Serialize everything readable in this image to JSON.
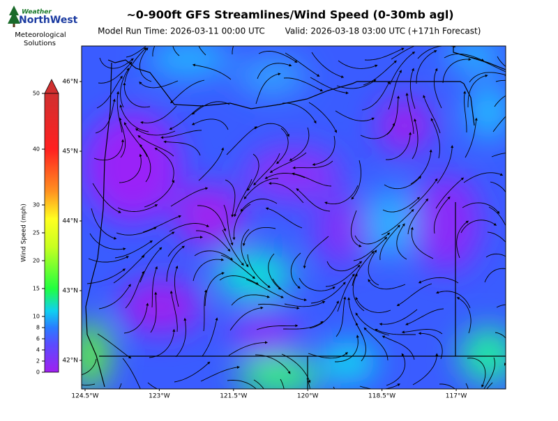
{
  "header": {
    "logo_top": "Weather",
    "logo_brand": "NorthWest",
    "logo_sub_1": "Meteorological",
    "logo_sub_2": "Solutions"
  },
  "title": "~0-900ft GFS Streamlines/Wind Speed (0-30mb agl)",
  "model_run": "Model Run Time: 2026-03-11 00:00 UTC",
  "valid": "Valid: 2026-03-18 03:00 UTC  (+171h Forecast)",
  "colorbar": {
    "label": "Wind Speed (mph)",
    "ylim": [
      0,
      50
    ],
    "yticks": [
      0,
      2,
      4,
      6,
      8,
      10,
      15,
      20,
      25,
      30,
      40,
      50
    ]
  },
  "map": {
    "xlim": [
      -124.57,
      -116.0
    ],
    "ylim": [
      41.59,
      46.51
    ],
    "yticks": [
      {
        "value": 46,
        "label": "46°N"
      },
      {
        "value": 45,
        "label": "45°N"
      },
      {
        "value": 44,
        "label": "44°N"
      },
      {
        "value": 43,
        "label": "43°N"
      },
      {
        "value": 42,
        "label": "42°N"
      }
    ],
    "xticks": [
      {
        "value": -124.5,
        "label": "124.5°W"
      },
      {
        "value": -123,
        "label": "123°W"
      },
      {
        "value": -121.5,
        "label": "121.5°W"
      },
      {
        "value": -120,
        "label": "120°W"
      },
      {
        "value": -118.5,
        "label": "118.5°W"
      },
      {
        "value": -117,
        "label": "117°W"
      }
    ]
  }
}
